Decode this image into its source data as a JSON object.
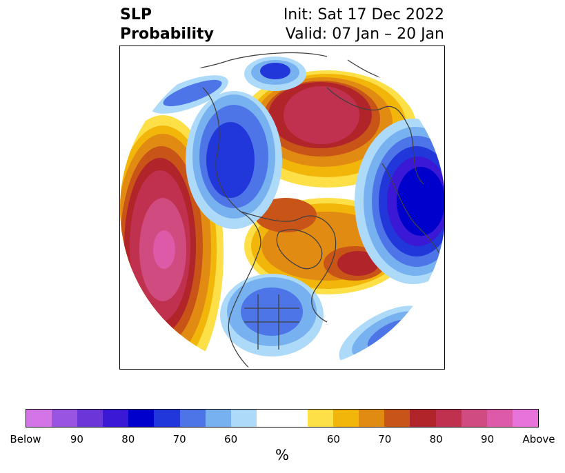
{
  "title": {
    "left_line1": "SLP",
    "left_line2": "Probability",
    "right_line1": "Init: Sat 17 Dec 2022",
    "right_line2": "Valid: 07 Jan – 20 Jan"
  },
  "colorbar": {
    "colors": [
      "#d375e6",
      "#9a55e0",
      "#6b36d8",
      "#3a18d6",
      "#0000cd",
      "#2137d9",
      "#4d75e8",
      "#77b1f0",
      "#acdaf8",
      "#ffffff",
      "#ffffff",
      "#fde047",
      "#f2b60a",
      "#e28b12",
      "#c85418",
      "#b1242a",
      "#c03150",
      "#d04b80",
      "#dd5aa8",
      "#e873db"
    ],
    "ticks": [
      "Below",
      "90",
      "80",
      "70",
      "60",
      "60",
      "70",
      "80",
      "90",
      "Above"
    ],
    "unit_label": "%"
  }
}
